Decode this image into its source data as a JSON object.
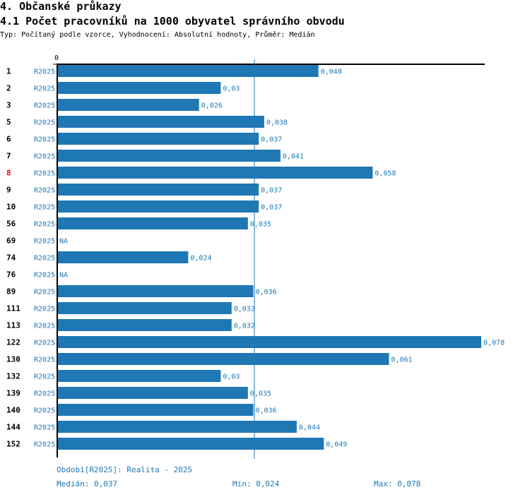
{
  "header": {
    "section_title": "4. Občanské průkazy",
    "chart_title": "4.1 Počet pracovníků na 1000 obyvatel správního obvodu",
    "meta": "Typ: Počítaný podle vzorce, Vyhodnocení: Absolutní hodnoty, Průměr: Medián"
  },
  "colors": {
    "bar": "#1f77b4",
    "text_blue": "#1f77b4",
    "highlight": "#ff0000",
    "axis": "#000000"
  },
  "chart_data": {
    "type": "bar",
    "orientation": "horizontal",
    "title": "4.1 Počet pracovníků na 1000 obyvatel správního obvodu",
    "axis_zero_label": "0",
    "xlim": [
      0,
      0.078
    ],
    "series_label": "R2025",
    "highlight_category": "8",
    "categories": [
      "1",
      "2",
      "3",
      "5",
      "6",
      "7",
      "8",
      "9",
      "10",
      "56",
      "69",
      "74",
      "76",
      "89",
      "111",
      "113",
      "122",
      "130",
      "132",
      "139",
      "140",
      "144",
      "152"
    ],
    "values": [
      0.048,
      0.03,
      0.026,
      0.038,
      0.037,
      0.041,
      0.058,
      0.037,
      0.037,
      0.035,
      null,
      0.024,
      null,
      0.036,
      0.032,
      0.032,
      0.078,
      0.061,
      0.03,
      0.035,
      0.036,
      0.044,
      0.049
    ],
    "value_labels": [
      "0,048",
      "0,03",
      "0,026",
      "0,038",
      "0,037",
      "0,041",
      "0,058",
      "0,037",
      "0,037",
      "0,035",
      "NA",
      "0,024",
      "NA",
      "0,036",
      "0,032",
      "0,032",
      "0,078",
      "0,061",
      "0,03",
      "0,035",
      "0,036",
      "0,044",
      "0,049"
    ],
    "median": 0.037,
    "min": 0.024,
    "max": 0.078
  },
  "footer": {
    "period": "Období[R2025]: Realita - 2025",
    "median": "Medián: 0,037",
    "min": "Min: 0,024",
    "max": "Max: 0,078"
  }
}
